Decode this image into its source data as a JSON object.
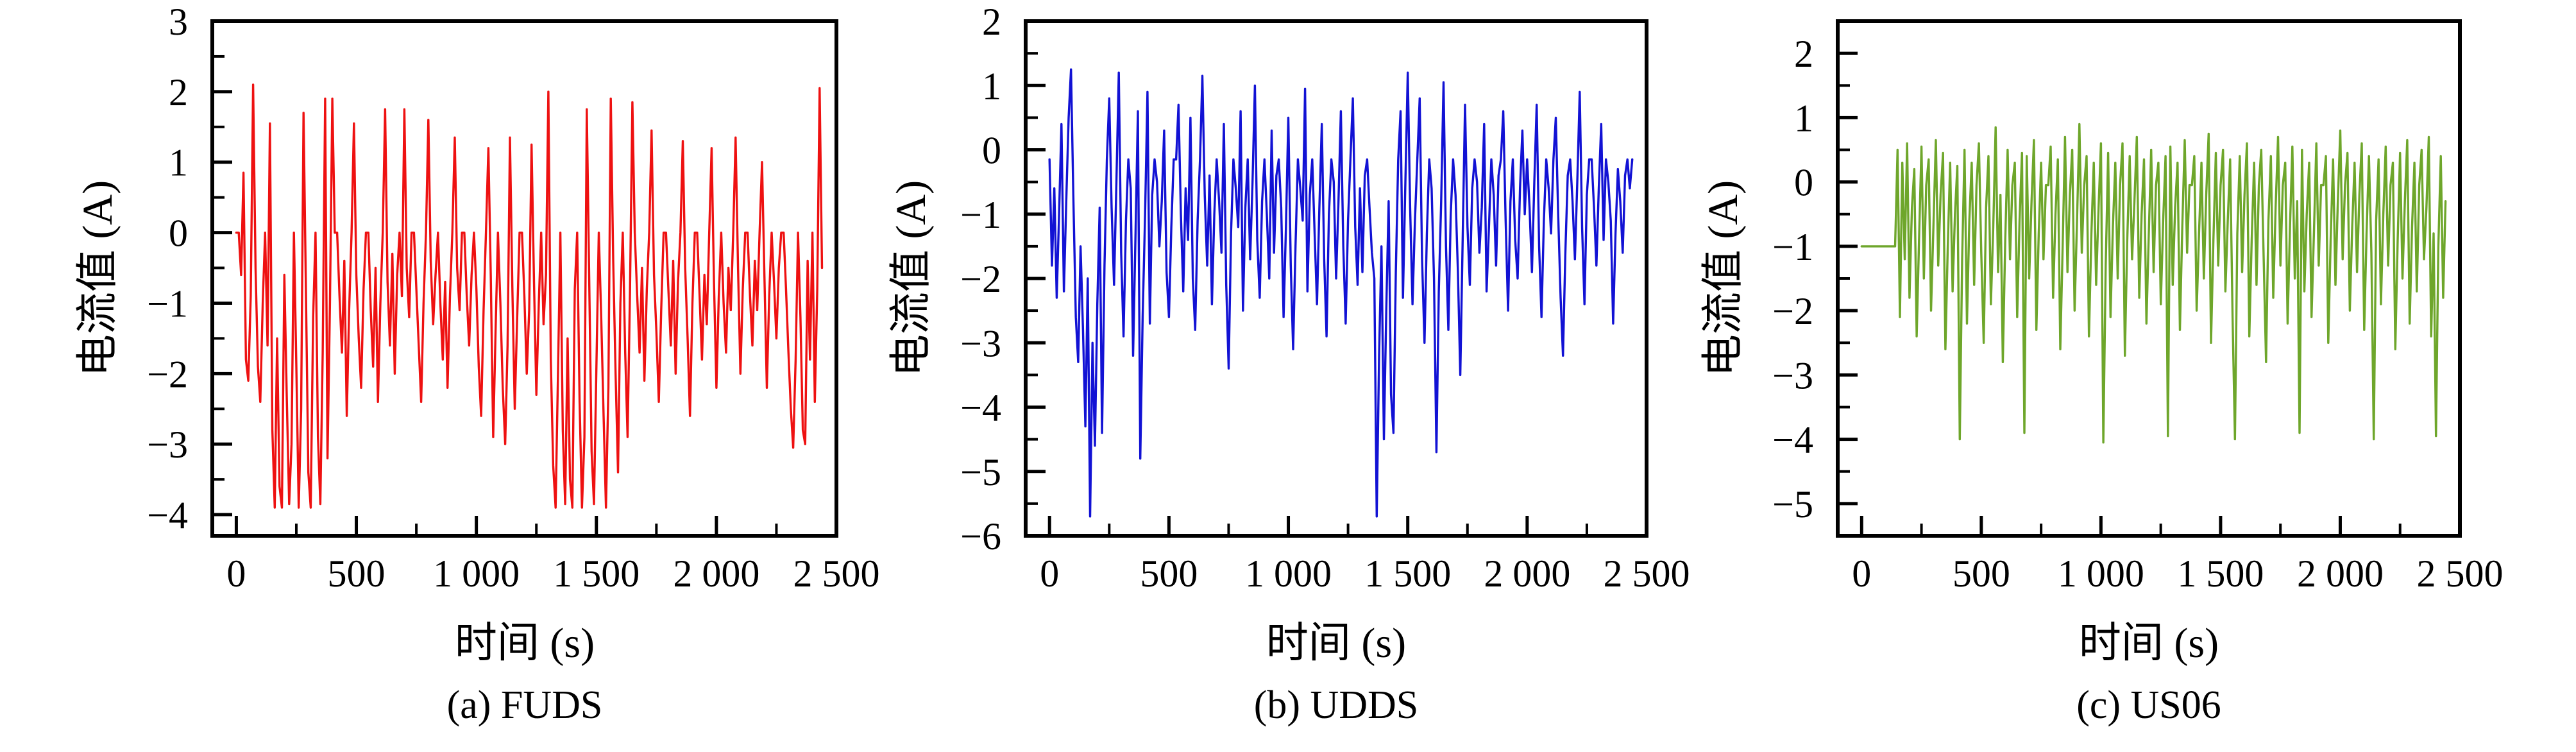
{
  "figure": {
    "background": "#ffffff"
  },
  "chart_data": [
    {
      "id": "fuds",
      "type": "line",
      "caption": "(a) FUDS",
      "xlabel": "时间 (s)",
      "ylabel": "电流值 (A)",
      "color": "#ee1111",
      "grid": false,
      "legend": "none",
      "x_range": [
        -100,
        2500
      ],
      "y_range": [
        -4.3,
        3
      ],
      "x_minor_step": 250,
      "y_minor_step": 0.5,
      "x_ticks": [
        {
          "v": 0,
          "label": "0"
        },
        {
          "v": 500,
          "label": "500"
        },
        {
          "v": 1000,
          "label": "1 000"
        },
        {
          "v": 1500,
          "label": "1 500"
        },
        {
          "v": 2000,
          "label": "2 000"
        },
        {
          "v": 2500,
          "label": "2 500"
        }
      ],
      "y_ticks": [
        {
          "v": 3,
          "label": "3"
        },
        {
          "v": 2,
          "label": "2"
        },
        {
          "v": 1,
          "label": "1"
        },
        {
          "v": 0,
          "label": "0"
        },
        {
          "v": -1,
          "label": "−1"
        },
        {
          "v": -2,
          "label": "−2"
        },
        {
          "v": -3,
          "label": "−3"
        },
        {
          "v": -4,
          "label": "−4"
        }
      ],
      "series": {
        "name": "FUDS current",
        "t0": 0,
        "dt": 10,
        "values": [
          0,
          0,
          -0.6,
          0.85,
          -1.8,
          -2.1,
          -0.9,
          2.1,
          -0.5,
          -1.9,
          -2.4,
          -1.0,
          0,
          -1.6,
          1.55,
          -2.8,
          -3.9,
          -1.5,
          -3.6,
          -3.9,
          -0.6,
          -2.3,
          -3.85,
          -3.0,
          0,
          -1.9,
          -3.9,
          -2.5,
          1.7,
          -0.8,
          -3.4,
          -3.9,
          -1.2,
          0,
          -2.9,
          -3.85,
          -1.7,
          1.9,
          -3.2,
          -1.0,
          1.9,
          0,
          0,
          -0.9,
          -1.7,
          -0.4,
          -2.6,
          -1.1,
          0,
          1.55,
          -0.6,
          -1.5,
          -2.2,
          -0.8,
          0,
          0,
          -1.1,
          -1.9,
          -0.5,
          -2.4,
          -1.0,
          0,
          1.75,
          -0.7,
          -1.6,
          -0.3,
          -2.0,
          -0.6,
          0,
          -0.9,
          1.75,
          -0.5,
          -1.2,
          0,
          0,
          -0.8,
          -1.6,
          -2.4,
          -1.0,
          0,
          1.6,
          -0.4,
          -1.3,
          -0.6,
          0,
          -1.0,
          -1.8,
          -0.7,
          -2.2,
          -0.9,
          0,
          1.35,
          -0.5,
          -1.1,
          0,
          0,
          -0.9,
          -1.6,
          -0.6,
          0,
          -0.8,
          -1.9,
          -2.6,
          -1.1,
          0,
          1.2,
          -0.6,
          -2.9,
          -1.4,
          0,
          -1.0,
          -2.2,
          -3.0,
          -1.6,
          1.35,
          -0.8,
          -2.5,
          -1.2,
          0,
          0,
          -0.9,
          -2.0,
          -1.1,
          1.25,
          -0.7,
          -2.3,
          -1.0,
          0,
          -1.3,
          -0.6,
          2.0,
          -1.8,
          -3.3,
          -3.9,
          -2.0,
          0,
          -2.8,
          -3.85,
          -1.5,
          -3.5,
          -3.9,
          -0.8,
          0,
          -2.4,
          -3.9,
          -2.9,
          1.75,
          -0.6,
          -3.1,
          -3.85,
          -1.9,
          0,
          -1.2,
          -2.6,
          -3.9,
          -2.2,
          1.9,
          -0.4,
          -2.0,
          -3.4,
          -1.0,
          0,
          -1.7,
          -2.9,
          -0.8,
          1.85,
          0,
          -0.9,
          -1.7,
          -0.5,
          -2.1,
          -0.8,
          0,
          1.45,
          -0.6,
          -1.4,
          -2.4,
          -1.1,
          0,
          0,
          -0.8,
          -1.6,
          -0.4,
          -2.0,
          -0.7,
          0,
          1.3,
          -0.5,
          -1.5,
          -2.6,
          -1.0,
          0,
          0,
          -0.9,
          -1.8,
          -0.6,
          -1.3,
          0,
          1.2,
          -0.7,
          -2.2,
          -0.9,
          0,
          -1.0,
          -1.7,
          -0.5,
          -1.1,
          0,
          1.35,
          -0.5,
          -2.0,
          -0.8,
          0,
          0,
          -0.9,
          -1.6,
          -0.4,
          -1.1,
          0,
          1.0,
          -0.6,
          -2.2,
          -0.9,
          0,
          -0.7,
          -1.5,
          -0.5,
          0,
          0,
          -0.8,
          -1.7,
          -2.5,
          -3.05,
          -1.8,
          0,
          -1.2,
          -2.8,
          -3.0,
          -0.4,
          -1.8,
          0,
          -2.4,
          -0.8,
          2.05,
          -0.5
        ]
      }
    },
    {
      "id": "udds",
      "type": "line",
      "caption": "(b) UDDS",
      "xlabel": "时间 (s)",
      "ylabel": "电流值 (A)",
      "color": "#1212d4",
      "grid": false,
      "legend": "none",
      "x_range": [
        -100,
        2500
      ],
      "y_range": [
        -6,
        2
      ],
      "x_minor_step": 250,
      "y_minor_step": 0.5,
      "x_ticks": [
        {
          "v": 0,
          "label": "0"
        },
        {
          "v": 500,
          "label": "500"
        },
        {
          "v": 1000,
          "label": "1 000"
        },
        {
          "v": 1500,
          "label": "1 500"
        },
        {
          "v": 2000,
          "label": "2 000"
        },
        {
          "v": 2500,
          "label": "2 500"
        }
      ],
      "y_ticks": [
        {
          "v": 2,
          "label": "2"
        },
        {
          "v": 1,
          "label": "1"
        },
        {
          "v": 0,
          "label": "0"
        },
        {
          "v": -1,
          "label": "−1"
        },
        {
          "v": -2,
          "label": "−2"
        },
        {
          "v": -3,
          "label": "−3"
        },
        {
          "v": -4,
          "label": "−4"
        },
        {
          "v": -5,
          "label": "−5"
        },
        {
          "v": -6,
          "label": "−6"
        }
      ],
      "series": {
        "name": "UDDS current",
        "t0": 0,
        "dt": 10,
        "values": [
          -0.15,
          -1.8,
          -0.6,
          -2.3,
          -1.0,
          0.4,
          -2.2,
          -0.8,
          0.5,
          1.25,
          -0.8,
          -2.6,
          -3.3,
          -1.5,
          -2.8,
          -4.3,
          -2.0,
          -5.7,
          -3.0,
          -4.6,
          -2.4,
          -0.9,
          -4.4,
          -1.8,
          -0.15,
          0.8,
          -0.9,
          -2.1,
          -0.5,
          1.2,
          -1.6,
          -2.9,
          -1.1,
          -0.15,
          -0.6,
          -3.2,
          -1.3,
          0.6,
          -4.8,
          -2.6,
          -1.0,
          0.9,
          -2.7,
          -0.7,
          -0.15,
          -0.5,
          -1.5,
          -0.8,
          0.3,
          -1.9,
          -2.6,
          -1.2,
          -0.15,
          -0.15,
          0.7,
          -1.0,
          -2.2,
          -0.6,
          -1.4,
          0.5,
          -2.0,
          -2.8,
          -1.1,
          -0.15,
          1.15,
          -0.7,
          -1.8,
          -0.4,
          -2.4,
          -1.0,
          -0.15,
          -0.8,
          -1.6,
          0.4,
          -2.1,
          -3.4,
          -1.3,
          -0.15,
          -0.6,
          -1.2,
          0.6,
          -2.5,
          -0.9,
          -0.15,
          -1.7,
          -0.5,
          1.0,
          -1.4,
          -2.3,
          -0.8,
          -0.15,
          -1.0,
          -2.0,
          0.3,
          -1.6,
          -0.4,
          -0.15,
          -0.9,
          -2.6,
          -1.2,
          0.5,
          -1.8,
          -3.1,
          -1.5,
          -0.15,
          -0.6,
          -1.1,
          0.95,
          -2.2,
          -0.7,
          -0.15,
          -1.3,
          -2.4,
          -0.9,
          0.4,
          -1.7,
          -2.9,
          -1.0,
          -0.15,
          -0.5,
          -2.0,
          -0.8,
          0.6,
          -1.5,
          -2.7,
          -1.1,
          -0.15,
          0.8,
          -1.2,
          -2.1,
          -0.6,
          -1.9,
          -0.4,
          -0.15,
          -0.9,
          -1.6,
          -2.0,
          -5.7,
          -3.2,
          -1.5,
          -4.5,
          -2.5,
          -0.8,
          -3.8,
          -4.4,
          -1.9,
          -0.15,
          0.6,
          -2.3,
          -0.5,
          1.2,
          -0.9,
          -2.4,
          -1.1,
          -0.15,
          0.8,
          -1.7,
          -3.0,
          -1.3,
          -0.15,
          -0.6,
          -2.0,
          -4.7,
          -2.2,
          -0.8,
          1.05,
          -1.5,
          -2.8,
          -1.0,
          -0.15,
          -0.7,
          -1.9,
          -3.5,
          -1.4,
          0.7,
          -1.2,
          -2.1,
          -0.6,
          -0.15,
          -0.5,
          -1.6,
          -0.9,
          0.4,
          -2.2,
          -1.2,
          -0.15,
          -0.7,
          -1.8,
          -0.4,
          -0.15,
          0.6,
          -1.1,
          -2.5,
          -0.8,
          -0.15,
          -1.4,
          -2.0,
          -0.6,
          0.3,
          -1.0,
          -0.15,
          -0.9,
          -1.9,
          -0.5,
          0.7,
          -1.5,
          -2.6,
          -1.1,
          -0.15,
          -0.6,
          -1.3,
          -0.15,
          0.5,
          -1.0,
          -2.3,
          -3.2,
          -1.6,
          -0.4,
          -0.15,
          -0.8,
          -1.7,
          -0.5,
          0.9,
          -1.2,
          -2.4,
          -0.7,
          -0.15,
          -0.15,
          -0.9,
          -1.8,
          -0.6,
          0.4,
          -1.4,
          -0.15,
          -0.5,
          -1.1,
          -2.7,
          -1.3,
          -0.3,
          -0.8,
          -1.6,
          -0.4,
          -0.15,
          -0.6,
          -0.15
        ]
      }
    },
    {
      "id": "us06",
      "type": "line",
      "caption": "(c) US06",
      "xlabel": "时间 (s)",
      "ylabel": "电流值 (A)",
      "color": "#6ea62b",
      "grid": false,
      "legend": "none",
      "x_range": [
        -100,
        2500
      ],
      "y_range": [
        -5.5,
        2.5
      ],
      "x_minor_step": 250,
      "y_minor_step": 0.5,
      "x_ticks": [
        {
          "v": 0,
          "label": "0"
        },
        {
          "v": 500,
          "label": "500"
        },
        {
          "v": 1000,
          "label": "1 000"
        },
        {
          "v": 1500,
          "label": "1 500"
        },
        {
          "v": 2000,
          "label": "2 000"
        },
        {
          "v": 2500,
          "label": "2 500"
        }
      ],
      "y_ticks": [
        {
          "v": 2,
          "label": "2"
        },
        {
          "v": 1,
          "label": "1"
        },
        {
          "v": 0,
          "label": "0"
        },
        {
          "v": -1,
          "label": "−1"
        },
        {
          "v": -2,
          "label": "−2"
        },
        {
          "v": -3,
          "label": "−3"
        },
        {
          "v": -4,
          "label": "−4"
        },
        {
          "v": -5,
          "label": "−5"
        }
      ],
      "series": {
        "name": "US06 current",
        "t0": 0,
        "dt": 10,
        "values": [
          -1.0,
          -1.0,
          -1.0,
          -1.0,
          -1.0,
          -1.0,
          -1.0,
          -1.0,
          -1.0,
          -1.0,
          -1.0,
          -1.0,
          -1.0,
          -1.0,
          -1.0,
          0.5,
          -2.1,
          0.3,
          -1.2,
          0.6,
          -1.8,
          -0.4,
          0.2,
          -2.4,
          -0.9,
          0.55,
          -1.5,
          -0.05,
          0.35,
          -2.0,
          -0.7,
          0.65,
          -1.3,
          -0.2,
          0.45,
          -2.6,
          -1.0,
          0.3,
          -1.7,
          -0.5,
          0.25,
          -4.0,
          -1.2,
          0.5,
          -2.2,
          -0.6,
          0.3,
          -1.6,
          -0.05,
          0.6,
          -1.1,
          -2.5,
          -0.4,
          0.4,
          -1.9,
          -0.7,
          0.85,
          -1.4,
          -0.2,
          -2.8,
          -0.9,
          0.5,
          -1.2,
          -0.05,
          0.3,
          -2.1,
          -0.6,
          0.45,
          -3.9,
          0.4,
          -1.5,
          -0.3,
          0.65,
          -2.3,
          -0.8,
          0.3,
          -1.2,
          -0.05,
          -0.05,
          0.55,
          -1.8,
          -0.5,
          0.35,
          -2.6,
          -1.0,
          0.7,
          -1.4,
          -0.2,
          0.5,
          -2.0,
          -0.6,
          0.9,
          -1.1,
          -0.05,
          0.4,
          -2.4,
          -0.8,
          0.3,
          -1.6,
          -0.4,
          0.6,
          -4.05,
          -1.3,
          0.45,
          -2.1,
          -0.7,
          0.3,
          -1.5,
          -0.05,
          0.6,
          -2.7,
          -0.9,
          0.4,
          -1.2,
          -0.3,
          0.7,
          -1.8,
          -0.5,
          0.35,
          -2.2,
          -0.8,
          0.5,
          -1.4,
          -0.05,
          0.3,
          -1.9,
          -0.6,
          0.4,
          -3.95,
          0.55,
          -1.6,
          -0.4,
          0.3,
          -2.3,
          -0.7,
          0.65,
          -1.1,
          -0.05,
          -0.05,
          0.4,
          -2.0,
          -0.8,
          0.3,
          -1.5,
          -0.2,
          0.75,
          -2.5,
          -0.9,
          0.45,
          -1.3,
          -0.05,
          0.5,
          -1.7,
          -0.6,
          0.35,
          -2.1,
          -4.0,
          -0.8,
          0.4,
          -1.4,
          -0.2,
          0.6,
          -2.4,
          -0.9,
          0.3,
          -1.6,
          -0.05,
          0.5,
          -1.2,
          -2.8,
          -0.6,
          0.4,
          -1.8,
          -0.4,
          0.7,
          -1.3,
          -0.05,
          0.3,
          -2.2,
          -0.7,
          0.55,
          -1.5,
          -0.3,
          -3.9,
          0.5,
          -1.7,
          -0.5,
          0.3,
          -2.1,
          -0.8,
          0.6,
          -1.3,
          -0.05,
          -0.05,
          0.4,
          -2.5,
          -0.9,
          0.35,
          -1.6,
          -0.3,
          0.8,
          -1.2,
          -0.05,
          0.45,
          -2.0,
          -0.7,
          0.3,
          -1.4,
          -0.2,
          0.6,
          -2.3,
          -0.8,
          0.4,
          -1.1,
          -4.0,
          -0.6,
          0.35,
          -1.9,
          -0.5,
          0.55,
          -1.3,
          -0.05,
          0.3,
          -2.6,
          -0.9,
          0.45,
          -1.5,
          -0.3,
          0.65,
          -2.2,
          -0.7,
          0.3,
          -1.7,
          -0.05,
          0.5,
          -1.2,
          -0.4,
          0.7,
          -2.4,
          -0.8,
          -3.95,
          -1.0,
          0.4,
          -1.8,
          -0.3
        ]
      }
    }
  ]
}
